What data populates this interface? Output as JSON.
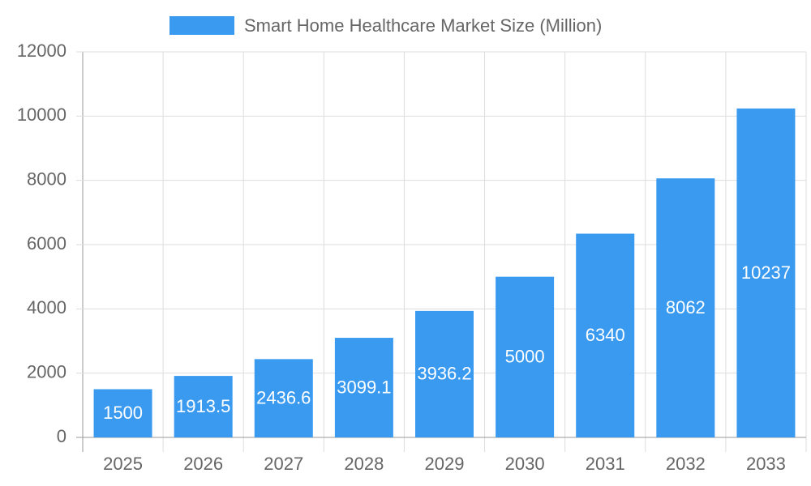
{
  "chart_data": {
    "type": "bar",
    "categories": [
      "2025",
      "2026",
      "2027",
      "2028",
      "2029",
      "2030",
      "2031",
      "2032",
      "2033"
    ],
    "series": [
      {
        "name": "Smart Home Healthcare Market Size (Million)",
        "color": "#399af0",
        "values": [
          1500,
          1913.5,
          2436.6,
          3099.1,
          3936.2,
          5000,
          6340,
          8062,
          10237
        ]
      }
    ],
    "ylim": [
      0,
      12000
    ],
    "yticks": [
      0,
      2000,
      4000,
      6000,
      8000,
      10000,
      12000
    ],
    "grid": true,
    "legend": "top"
  }
}
